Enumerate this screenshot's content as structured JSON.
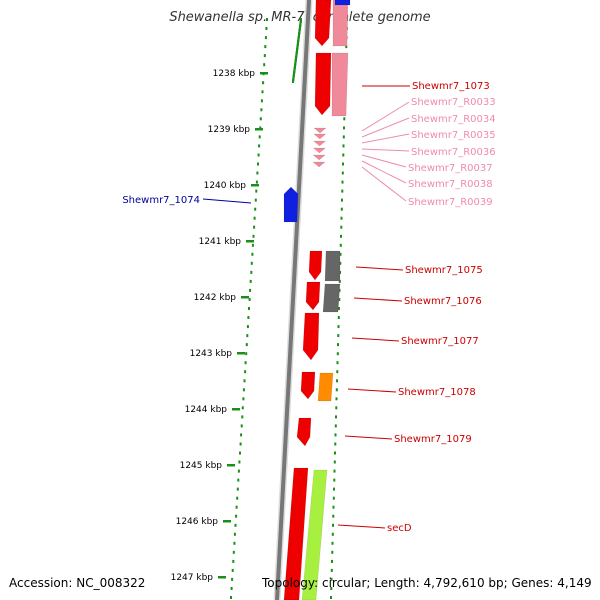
{
  "title": "Shewanella sp. MR-7, complete genome",
  "accession": "Accession: NC_008322",
  "topology": "Topology: circular; Length: 4,792,610 bp; Genes: 4,149",
  "colors": {
    "ruler_dots": "#1a8f1a",
    "backbone": "#777777",
    "gene_red": "#ee0000",
    "gene_pink": "#f08a9a",
    "gene_blue": "#1020e0",
    "gene_gray": "#666666",
    "gene_orange": "#ff8c00",
    "gene_lime": "#a8f040",
    "label_red": "#cc0000",
    "label_pink": "#f08ab0",
    "label_blue": "#000099"
  },
  "ruler": [
    "1238 kbp",
    "1239 kbp",
    "1240 kbp",
    "1241 kbp",
    "1242 kbp",
    "1243 kbp",
    "1244 kbp",
    "1245 kbp",
    "1246 kbp",
    "1247 kbp"
  ],
  "labels": [
    {
      "text": "Shewmr7_1073",
      "color": "red"
    },
    {
      "text": "Shewmr7_R0033",
      "color": "pink"
    },
    {
      "text": "Shewmr7_R0034",
      "color": "pink"
    },
    {
      "text": "Shewmr7_R0035",
      "color": "pink"
    },
    {
      "text": "Shewmr7_R0036",
      "color": "pink"
    },
    {
      "text": "Shewmr7_R0037",
      "color": "pink"
    },
    {
      "text": "Shewmr7_R0038",
      "color": "pink"
    },
    {
      "text": "Shewmr7_R0039",
      "color": "pink"
    },
    {
      "text": "Shewmr7_1074",
      "color": "blue"
    },
    {
      "text": "Shewmr7_1075",
      "color": "red"
    },
    {
      "text": "Shewmr7_1076",
      "color": "red"
    },
    {
      "text": "Shewmr7_1077",
      "color": "red"
    },
    {
      "text": "Shewmr7_1078",
      "color": "red"
    },
    {
      "text": "Shewmr7_1079",
      "color": "red"
    },
    {
      "text": "secD",
      "color": "red"
    }
  ]
}
